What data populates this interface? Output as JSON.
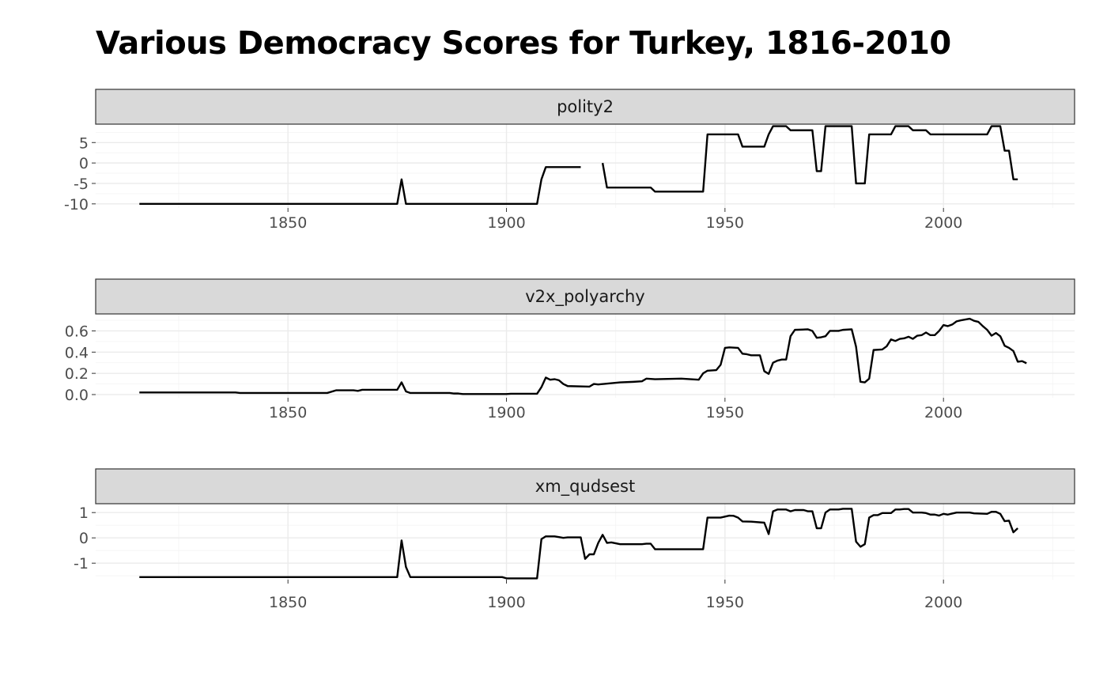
{
  "chart_data": {
    "type": "line",
    "title": "Various Democracy Scores for Turkey, 1816-2010",
    "xlabel": "",
    "ylabel": "",
    "xlim": [
      1806,
      2030
    ],
    "x_ticks": [
      1850,
      1900,
      1950,
      2000
    ],
    "grid": true,
    "legend": "none",
    "line_color": "#000000",
    "panels": [
      {
        "name": "polity2",
        "ylim": [
          -11,
          9.5
        ],
        "y_ticks": [
          5,
          0,
          -5,
          -10
        ],
        "y_tick_labels": [
          "5",
          "0",
          "-5",
          "-10"
        ],
        "segments": [
          [
            [
              1816,
              -10
            ],
            [
              1875,
              -10
            ],
            [
              1876,
              -4
            ],
            [
              1877,
              -10
            ],
            [
              1907,
              -10
            ],
            [
              1908,
              -4
            ],
            [
              1909,
              -1
            ],
            [
              1910,
              -1
            ],
            [
              1917,
              -1
            ]
          ],
          [
            [
              1922,
              0
            ],
            [
              1923,
              -6
            ],
            [
              1932,
              -6
            ],
            [
              1933,
              -6
            ],
            [
              1934,
              -7
            ],
            [
              1945,
              -7
            ],
            [
              1946,
              7
            ],
            [
              1953,
              7
            ],
            [
              1954,
              4
            ],
            [
              1959,
              4
            ],
            [
              1960,
              7
            ],
            [
              1961,
              9
            ],
            [
              1964,
              9
            ],
            [
              1965,
              8
            ],
            [
              1970,
              8
            ],
            [
              1971,
              -2
            ],
            [
              1972,
              -2
            ],
            [
              1973,
              9
            ],
            [
              1979,
              9
            ],
            [
              1980,
              -5
            ],
            [
              1982,
              -5
            ],
            [
              1983,
              7
            ],
            [
              1988,
              7
            ],
            [
              1989,
              9
            ],
            [
              1992,
              9
            ],
            [
              1993,
              8
            ],
            [
              1996,
              8
            ],
            [
              1997,
              7
            ],
            [
              2010,
              7
            ],
            [
              2011,
              9
            ],
            [
              2013,
              9
            ],
            [
              2014,
              3
            ],
            [
              2015,
              3
            ],
            [
              2016,
              -4
            ],
            [
              2017,
              -4
            ]
          ]
        ]
      },
      {
        "name": "v2x_polyarchy",
        "ylim": [
          -0.03,
          0.76
        ],
        "y_ticks": [
          0.6,
          0.4,
          0.2,
          0.0
        ],
        "y_tick_labels": [
          "0.6",
          "0.4",
          "0.2",
          "0.0"
        ],
        "segments": [
          [
            [
              1816,
              0.02
            ],
            [
              1838,
              0.02
            ],
            [
              1839,
              0.015
            ],
            [
              1859,
              0.015
            ],
            [
              1861,
              0.04
            ],
            [
              1865,
              0.04
            ],
            [
              1866,
              0.035
            ],
            [
              1867,
              0.045
            ],
            [
              1875,
              0.045
            ],
            [
              1876,
              0.115
            ],
            [
              1877,
              0.03
            ],
            [
              1878,
              0.015
            ],
            [
              1887,
              0.015
            ],
            [
              1888,
              0.01
            ],
            [
              1889,
              0.01
            ],
            [
              1890,
              0.005
            ],
            [
              1900,
              0.005
            ],
            [
              1901,
              0.008
            ],
            [
              1907,
              0.008
            ],
            [
              1908,
              0.07
            ],
            [
              1909,
              0.16
            ],
            [
              1910,
              0.14
            ],
            [
              1911,
              0.145
            ],
            [
              1912,
              0.135
            ],
            [
              1913,
              0.1
            ],
            [
              1914,
              0.08
            ],
            [
              1919,
              0.075
            ],
            [
              1920,
              0.1
            ],
            [
              1921,
              0.095
            ],
            [
              1926,
              0.115
            ],
            [
              1929,
              0.12
            ],
            [
              1931,
              0.125
            ],
            [
              1932,
              0.15
            ],
            [
              1934,
              0.145
            ],
            [
              1940,
              0.15
            ],
            [
              1944,
              0.14
            ],
            [
              1945,
              0.2
            ],
            [
              1946,
              0.225
            ],
            [
              1948,
              0.23
            ],
            [
              1949,
              0.28
            ],
            [
              1950,
              0.44
            ],
            [
              1951,
              0.445
            ],
            [
              1953,
              0.44
            ],
            [
              1954,
              0.385
            ],
            [
              1955,
              0.38
            ],
            [
              1956,
              0.37
            ],
            [
              1958,
              0.37
            ],
            [
              1959,
              0.22
            ],
            [
              1960,
              0.195
            ],
            [
              1961,
              0.3
            ],
            [
              1962,
              0.32
            ],
            [
              1963,
              0.33
            ],
            [
              1964,
              0.33
            ],
            [
              1965,
              0.55
            ],
            [
              1966,
              0.61
            ],
            [
              1969,
              0.615
            ],
            [
              1970,
              0.6
            ],
            [
              1971,
              0.535
            ],
            [
              1972,
              0.54
            ],
            [
              1973,
              0.55
            ],
            [
              1974,
              0.6
            ],
            [
              1976,
              0.6
            ],
            [
              1977,
              0.61
            ],
            [
              1979,
              0.615
            ],
            [
              1980,
              0.45
            ],
            [
              1981,
              0.12
            ],
            [
              1982,
              0.115
            ],
            [
              1983,
              0.15
            ],
            [
              1984,
              0.42
            ],
            [
              1986,
              0.425
            ],
            [
              1987,
              0.455
            ],
            [
              1988,
              0.52
            ],
            [
              1989,
              0.505
            ],
            [
              1990,
              0.525
            ],
            [
              1991,
              0.53
            ],
            [
              1992,
              0.545
            ],
            [
              1993,
              0.525
            ],
            [
              1994,
              0.555
            ],
            [
              1995,
              0.56
            ],
            [
              1996,
              0.585
            ],
            [
              1997,
              0.56
            ],
            [
              1998,
              0.56
            ],
            [
              1999,
              0.6
            ],
            [
              2000,
              0.655
            ],
            [
              2001,
              0.645
            ],
            [
              2002,
              0.66
            ],
            [
              2003,
              0.69
            ],
            [
              2004,
              0.7
            ],
            [
              2006,
              0.715
            ],
            [
              2007,
              0.695
            ],
            [
              2008,
              0.685
            ],
            [
              2009,
              0.645
            ],
            [
              2010,
              0.61
            ],
            [
              2011,
              0.555
            ],
            [
              2012,
              0.58
            ],
            [
              2013,
              0.55
            ],
            [
              2014,
              0.46
            ],
            [
              2015,
              0.44
            ],
            [
              2016,
              0.41
            ],
            [
              2017,
              0.31
            ],
            [
              2018,
              0.315
            ],
            [
              2019,
              0.295
            ]
          ]
        ]
      },
      {
        "name": "xm_qudsest",
        "ylim": [
          -1.65,
          1.35
        ],
        "y_ticks": [
          1,
          0,
          -1
        ],
        "y_tick_labels": [
          "1",
          "0",
          "-1"
        ],
        "segments": [
          [
            [
              1816,
              -1.55
            ],
            [
              1875,
              -1.55
            ],
            [
              1876,
              -0.1
            ],
            [
              1877,
              -1.15
            ],
            [
              1878,
              -1.55
            ],
            [
              1899,
              -1.55
            ],
            [
              1900,
              -1.6
            ],
            [
              1907,
              -1.6
            ],
            [
              1908,
              -0.05
            ],
            [
              1909,
              0.06
            ],
            [
              1911,
              0.06
            ],
            [
              1912,
              0.03
            ],
            [
              1913,
              0
            ],
            [
              1914,
              0.02
            ],
            [
              1917,
              0.02
            ],
            [
              1918,
              -0.83
            ],
            [
              1919,
              -0.65
            ],
            [
              1920,
              -0.65
            ],
            [
              1921,
              -0.2
            ],
            [
              1922,
              0.12
            ],
            [
              1923,
              -0.2
            ],
            [
              1924,
              -0.18
            ],
            [
              1926,
              -0.25
            ],
            [
              1931,
              -0.25
            ],
            [
              1932,
              -0.23
            ],
            [
              1933,
              -0.23
            ],
            [
              1934,
              -0.45
            ],
            [
              1944,
              -0.45
            ],
            [
              1945,
              -0.45
            ],
            [
              1946,
              0.8
            ],
            [
              1949,
              0.8
            ],
            [
              1951,
              0.88
            ],
            [
              1952,
              0.87
            ],
            [
              1953,
              0.8
            ],
            [
              1954,
              0.65
            ],
            [
              1956,
              0.64
            ],
            [
              1959,
              0.6
            ],
            [
              1960,
              0.15
            ],
            [
              1961,
              1.05
            ],
            [
              1962,
              1.12
            ],
            [
              1964,
              1.12
            ],
            [
              1965,
              1.05
            ],
            [
              1966,
              1.1
            ],
            [
              1968,
              1.1
            ],
            [
              1969,
              1.05
            ],
            [
              1970,
              1.05
            ],
            [
              1971,
              0.38
            ],
            [
              1972,
              0.38
            ],
            [
              1973,
              1.0
            ],
            [
              1974,
              1.12
            ],
            [
              1976,
              1.12
            ],
            [
              1977,
              1.15
            ],
            [
              1979,
              1.15
            ],
            [
              1980,
              -0.15
            ],
            [
              1981,
              -0.35
            ],
            [
              1982,
              -0.25
            ],
            [
              1983,
              0.8
            ],
            [
              1984,
              0.9
            ],
            [
              1985,
              0.9
            ],
            [
              1986,
              0.98
            ],
            [
              1988,
              0.98
            ],
            [
              1989,
              1.12
            ],
            [
              1990,
              1.12
            ],
            [
              1991,
              1.14
            ],
            [
              1992,
              1.14
            ],
            [
              1993,
              1.0
            ],
            [
              1995,
              1.0
            ],
            [
              1996,
              0.98
            ],
            [
              1997,
              0.92
            ],
            [
              1998,
              0.92
            ],
            [
              1999,
              0.88
            ],
            [
              2000,
              0.95
            ],
            [
              2001,
              0.92
            ],
            [
              2002,
              0.96
            ],
            [
              2003,
              1.0
            ],
            [
              2006,
              1.0
            ],
            [
              2007,
              0.97
            ],
            [
              2010,
              0.95
            ],
            [
              2011,
              1.03
            ],
            [
              2012,
              1.03
            ],
            [
              2013,
              0.95
            ],
            [
              2014,
              0.66
            ],
            [
              2015,
              0.68
            ],
            [
              2016,
              0.22
            ],
            [
              2017,
              0.38
            ]
          ]
        ]
      }
    ]
  }
}
